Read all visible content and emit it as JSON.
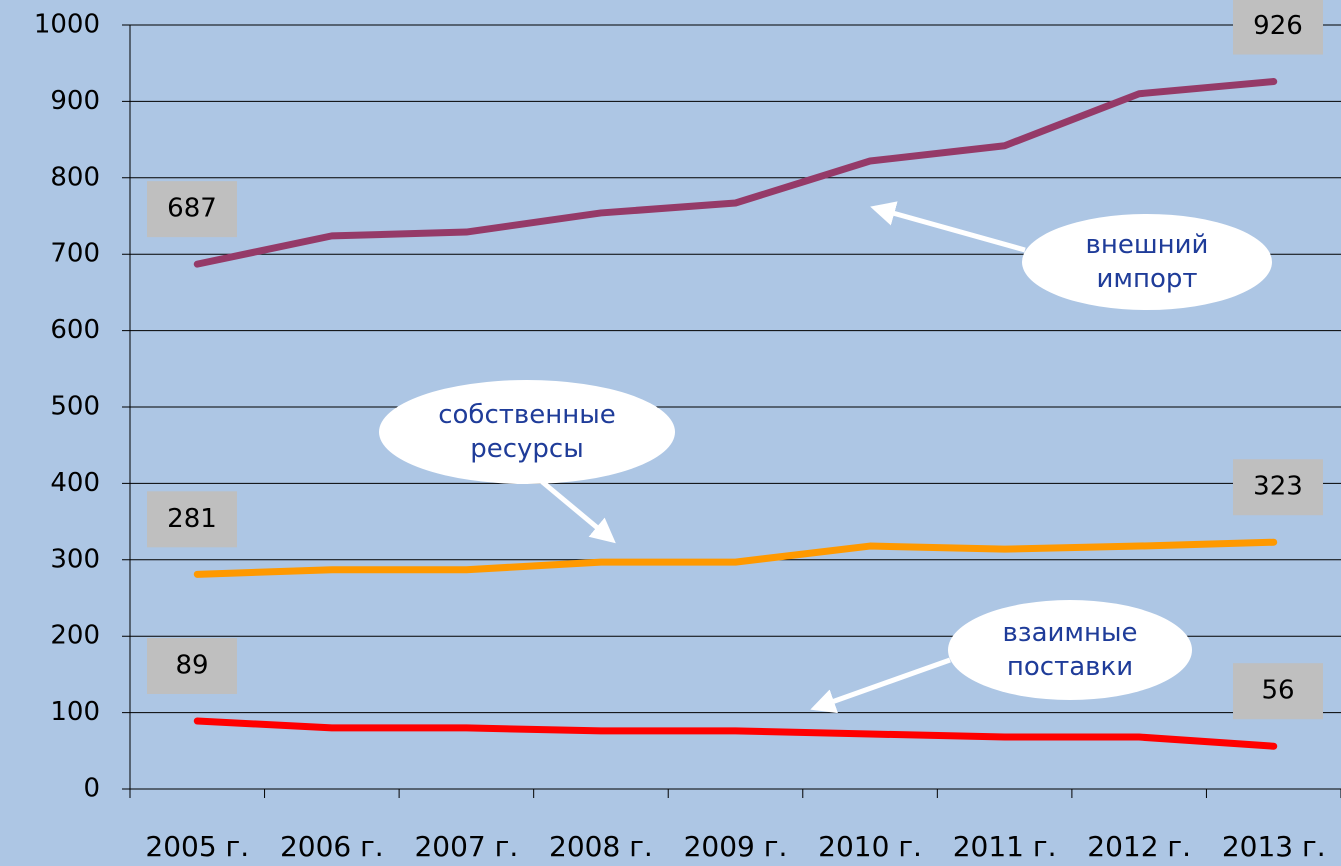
{
  "chart_data": {
    "type": "line",
    "categories": [
      "2005 г.",
      "2006 г.",
      "2007 г.",
      "2008 г.",
      "2009 г.",
      "2010 г.",
      "2011 г.",
      "2012 г.",
      "2013 г."
    ],
    "series": [
      {
        "name": "внешний импорт",
        "color": "#953a68",
        "values": [
          687,
          724,
          729,
          754,
          767,
          822,
          842,
          910,
          926
        ]
      },
      {
        "name": "собственные ресурсы",
        "color": "#ff9900",
        "values": [
          281,
          287,
          287,
          297,
          297,
          318,
          314,
          318,
          323
        ]
      },
      {
        "name": "взаимные поставки",
        "color": "#ff0000",
        "values": [
          89,
          80,
          80,
          76,
          76,
          72,
          68,
          68,
          56
        ]
      }
    ],
    "ylim": [
      0,
      1000
    ],
    "yticks": [
      0,
      100,
      200,
      300,
      400,
      500,
      600,
      700,
      800,
      900,
      1000
    ],
    "grid": true
  }
}
